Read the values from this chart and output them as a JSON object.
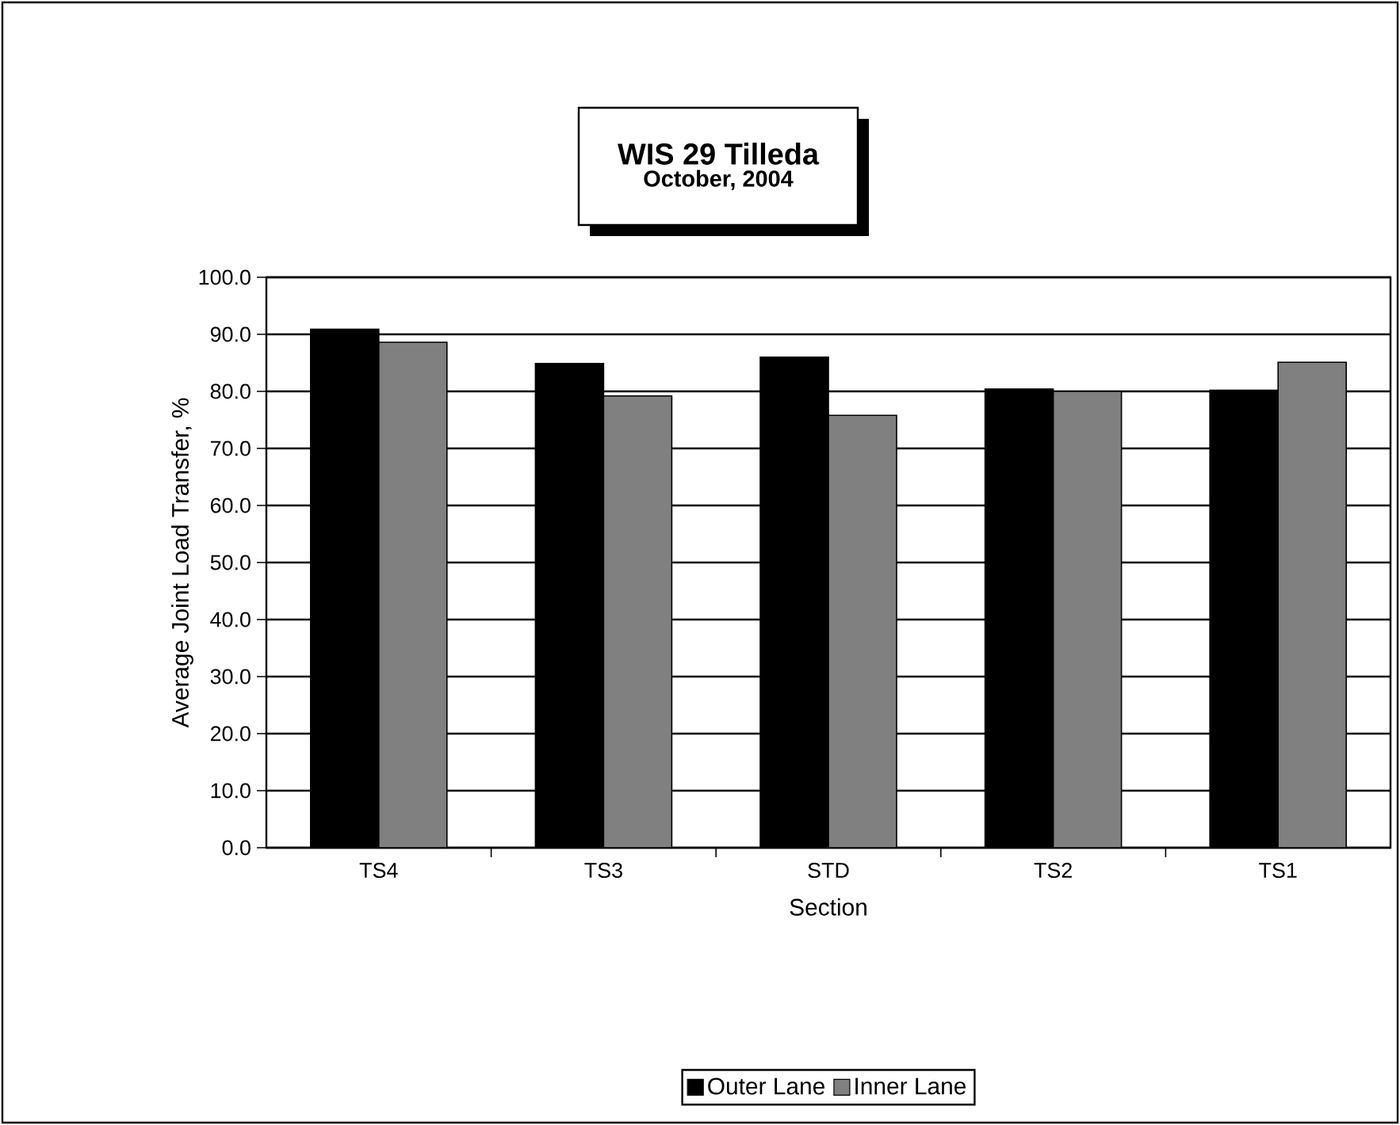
{
  "chart_data": {
    "type": "bar",
    "title": "WIS 29 Tilleda",
    "subtitle": "October, 2004",
    "xlabel": "Section",
    "ylabel": "Average Joint Load Transfer, %",
    "categories": [
      "TS4",
      "TS3",
      "STD",
      "TS2",
      "TS1"
    ],
    "series": [
      {
        "name": "Outer Lane",
        "color": "#000000",
        "values": [
          90.9,
          84.9,
          86.0,
          80.4,
          80.2
        ]
      },
      {
        "name": "Inner Lane",
        "color": "#808080",
        "values": [
          88.6,
          79.2,
          75.8,
          80.0,
          85.1
        ]
      }
    ],
    "ylim": [
      0,
      100
    ],
    "yticks": [
      {
        "value": 0,
        "label": "0.0"
      },
      {
        "value": 10,
        "label": "10.0"
      },
      {
        "value": 20,
        "label": "20.0"
      },
      {
        "value": 30,
        "label": "30.0"
      },
      {
        "value": 40,
        "label": "40.0"
      },
      {
        "value": 50,
        "label": "50.0"
      },
      {
        "value": 60,
        "label": "60.0"
      },
      {
        "value": 70,
        "label": "70.0"
      },
      {
        "value": 80,
        "label": "80.0"
      },
      {
        "value": 90,
        "label": "90.0"
      },
      {
        "value": 100,
        "label": "100.0"
      }
    ],
    "grid": "y",
    "legend": "bottom"
  }
}
